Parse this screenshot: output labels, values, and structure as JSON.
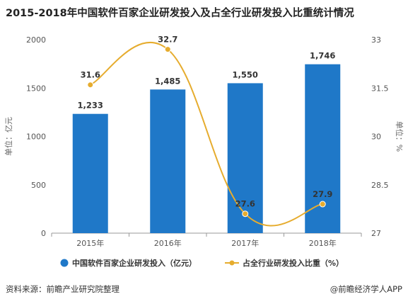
{
  "chart_data": {
    "type": "bar",
    "title": "2015-2018年中国软件百家企业研发投入及占全行业研发投入比重统计情况",
    "categories": [
      "2015年",
      "2016年",
      "2017年",
      "2018年"
    ],
    "series": [
      {
        "name": "中国软件百家企业研发投入（亿元）",
        "type": "bar",
        "axis": "left",
        "values": [
          1233,
          1485,
          1550,
          1746
        ],
        "labels": [
          "1,233",
          "1,485",
          "1,550",
          "1,746"
        ],
        "color": "#1f78c8"
      },
      {
        "name": "占全行业研发投入比重（%）",
        "type": "line",
        "axis": "right",
        "values": [
          31.6,
          32.7,
          27.6,
          27.9
        ],
        "labels": [
          "31.6",
          "32.7",
          "27.6",
          "27.9"
        ],
        "color": "#e6ac2e"
      }
    ],
    "ylabel": "单位：亿元",
    "ylim": [
      0,
      2000
    ],
    "yticks": [
      "0",
      "500",
      "1000",
      "1500",
      "2000"
    ],
    "y2label": "单位：%",
    "y2lim": [
      27,
      33
    ],
    "y2ticks": [
      "27",
      "28.5",
      "30",
      "31.5",
      "33"
    ],
    "grid": false,
    "legend_position": "bottom"
  },
  "footer": {
    "source": "资料来源：前瞻产业研究院整理",
    "brand": "@前瞻经济学人APP"
  }
}
